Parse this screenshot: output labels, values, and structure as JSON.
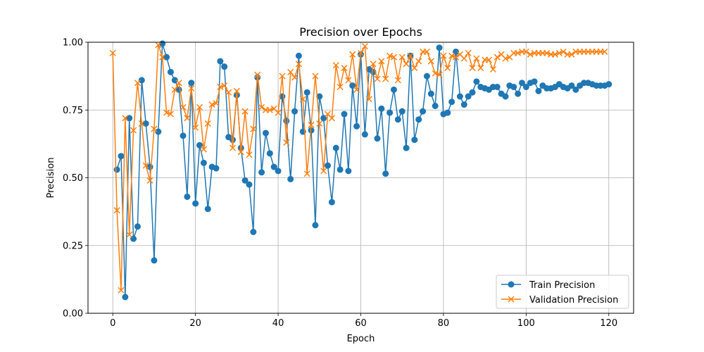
{
  "chart_data": {
    "type": "line",
    "title": "Precision over Epochs",
    "xlabel": "Epoch",
    "ylabel": "Precision",
    "xlim": [
      -6,
      126
    ],
    "ylim": [
      0,
      1.0
    ],
    "xticks": [
      0,
      20,
      40,
      60,
      80,
      100,
      120
    ],
    "yticks": [
      0.0,
      0.25,
      0.5,
      0.75,
      1.0
    ],
    "xtick_labels": [
      "0",
      "20",
      "40",
      "60",
      "80",
      "100",
      "120"
    ],
    "ytick_labels": [
      "0.00",
      "0.25",
      "0.50",
      "0.75",
      "1.00"
    ],
    "grid": true,
    "legend_position": "bottom-right",
    "series": [
      {
        "name": "Train Precision",
        "color": "#1f77b4",
        "marker": "circle",
        "x": [
          1,
          2,
          3,
          4,
          5,
          6,
          7,
          8,
          9,
          10,
          11,
          12,
          13,
          14,
          15,
          16,
          17,
          18,
          19,
          20,
          21,
          22,
          23,
          24,
          25,
          26,
          27,
          28,
          29,
          30,
          31,
          32,
          33,
          34,
          35,
          36,
          37,
          38,
          39,
          40,
          41,
          42,
          43,
          44,
          45,
          46,
          47,
          48,
          49,
          50,
          51,
          52,
          53,
          54,
          55,
          56,
          57,
          58,
          59,
          60,
          61,
          62,
          63,
          64,
          65,
          66,
          67,
          68,
          69,
          70,
          71,
          72,
          73,
          74,
          75,
          76,
          77,
          78,
          79,
          80,
          81,
          82,
          83,
          84,
          85,
          86,
          87,
          88,
          89,
          90,
          91,
          92,
          93,
          94,
          95,
          96,
          97,
          98,
          99,
          100,
          101,
          102,
          103,
          104,
          105,
          106,
          107,
          108,
          109,
          110,
          111,
          112,
          113,
          114,
          115,
          116,
          117,
          118,
          119,
          120
        ],
        "values": [
          0.53,
          0.58,
          0.06,
          0.72,
          0.275,
          0.32,
          0.86,
          0.7,
          0.54,
          0.195,
          0.67,
          0.995,
          0.945,
          0.89,
          0.86,
          0.825,
          0.655,
          0.43,
          0.85,
          0.405,
          0.62,
          0.555,
          0.385,
          0.54,
          0.535,
          0.93,
          0.91,
          0.65,
          0.64,
          0.805,
          0.61,
          0.49,
          0.475,
          0.3,
          0.87,
          0.52,
          0.665,
          0.59,
          0.54,
          0.525,
          0.8,
          0.71,
          0.495,
          0.745,
          0.95,
          0.67,
          0.815,
          0.675,
          0.325,
          0.8,
          0.72,
          0.545,
          0.41,
          0.61,
          0.53,
          0.735,
          0.525,
          0.84,
          0.69,
          0.955,
          0.66,
          0.9,
          0.89,
          0.645,
          0.755,
          0.515,
          0.74,
          0.825,
          0.715,
          0.745,
          0.61,
          0.95,
          0.64,
          0.715,
          0.745,
          0.875,
          0.81,
          0.765,
          0.98,
          0.735,
          0.74,
          0.78,
          0.965,
          0.8,
          0.77,
          0.8,
          0.815,
          0.855,
          0.835,
          0.83,
          0.825,
          0.835,
          0.835,
          0.81,
          0.8,
          0.84,
          0.835,
          0.81,
          0.85,
          0.835,
          0.85,
          0.855,
          0.82,
          0.84,
          0.83,
          0.83,
          0.835,
          0.845,
          0.835,
          0.83,
          0.84,
          0.825,
          0.84,
          0.85,
          0.85,
          0.845,
          0.84,
          0.84,
          0.84,
          0.845
        ]
      },
      {
        "name": "Validation Precision",
        "color": "#ff7f0e",
        "marker": "x",
        "x": [
          0,
          1,
          2,
          3,
          4,
          5,
          6,
          7,
          8,
          9,
          10,
          11,
          12,
          13,
          14,
          15,
          16,
          17,
          18,
          19,
          20,
          21,
          22,
          23,
          24,
          25,
          26,
          27,
          28,
          29,
          30,
          31,
          32,
          33,
          34,
          35,
          36,
          37,
          38,
          39,
          40,
          41,
          42,
          43,
          44,
          45,
          46,
          47,
          48,
          49,
          50,
          51,
          52,
          53,
          54,
          55,
          56,
          57,
          58,
          59,
          60,
          61,
          62,
          63,
          64,
          65,
          66,
          67,
          68,
          69,
          70,
          71,
          72,
          73,
          74,
          75,
          76,
          77,
          78,
          79,
          80,
          81,
          82,
          83,
          84,
          85,
          86,
          87,
          88,
          89,
          90,
          91,
          92,
          93,
          94,
          95,
          96,
          97,
          98,
          99,
          100,
          101,
          102,
          103,
          104,
          105,
          106,
          107,
          108,
          109,
          110,
          111,
          112,
          113,
          114,
          115,
          116,
          117,
          118,
          119
        ],
        "values": [
          0.96,
          0.38,
          0.085,
          0.72,
          0.29,
          0.675,
          0.85,
          0.7,
          0.545,
          0.49,
          0.68,
          0.99,
          0.945,
          0.74,
          0.735,
          0.825,
          0.85,
          0.76,
          0.72,
          0.83,
          0.685,
          0.76,
          0.605,
          0.7,
          0.77,
          0.775,
          0.835,
          0.84,
          0.815,
          0.61,
          0.82,
          0.595,
          0.745,
          0.585,
          0.68,
          0.88,
          0.76,
          0.75,
          0.75,
          0.755,
          0.74,
          0.875,
          0.63,
          0.89,
          0.87,
          0.92,
          0.79,
          0.515,
          0.695,
          0.875,
          0.7,
          0.525,
          0.735,
          0.72,
          0.915,
          0.835,
          0.905,
          0.86,
          0.955,
          0.825,
          0.96,
          0.985,
          0.79,
          0.92,
          0.865,
          0.93,
          0.865,
          0.95,
          0.945,
          0.86,
          0.945,
          0.92,
          0.95,
          0.905,
          0.93,
          0.965,
          0.965,
          0.93,
          0.885,
          0.88,
          0.95,
          0.905,
          0.95,
          0.945,
          0.955,
          0.94,
          0.96,
          0.905,
          0.94,
          0.905,
          0.935,
          0.935,
          0.9,
          0.945,
          0.955,
          0.94,
          0.945,
          0.96,
          0.96,
          0.965,
          0.965,
          0.955,
          0.96,
          0.96,
          0.96,
          0.96,
          0.955,
          0.955,
          0.96,
          0.965,
          0.955,
          0.955,
          0.965,
          0.965,
          0.965,
          0.965,
          0.965,
          0.965,
          0.965,
          0.965
        ]
      }
    ]
  }
}
